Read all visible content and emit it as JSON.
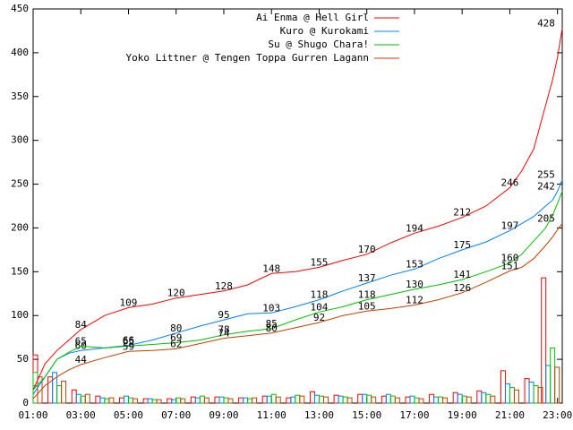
{
  "chart_data": {
    "type": "line",
    "xlim": [
      1,
      23.2
    ],
    "ylim": [
      0,
      450
    ],
    "yticks": [
      0,
      50,
      100,
      150,
      200,
      250,
      300,
      350,
      400,
      450
    ],
    "xticks": [
      {
        "value": 1,
        "label": "01:00"
      },
      {
        "value": 3,
        "label": "03:00"
      },
      {
        "value": 5,
        "label": "05:00"
      },
      {
        "value": 7,
        "label": "07:00"
      },
      {
        "value": 9,
        "label": "09:00"
      },
      {
        "value": 11,
        "label": "11:00"
      },
      {
        "value": 13,
        "label": "13:00"
      },
      {
        "value": 15,
        "label": "15:00"
      },
      {
        "value": 17,
        "label": "17:00"
      },
      {
        "value": 19,
        "label": "19:00"
      },
      {
        "value": 21,
        "label": "21:00"
      },
      {
        "value": 23,
        "label": "23:00"
      }
    ],
    "legend": "top-right",
    "x": [
      1,
      1.5,
      2,
      2.5,
      3,
      4,
      5,
      6,
      7,
      8,
      9,
      10,
      11,
      12,
      13,
      14,
      15,
      16,
      17,
      18,
      19,
      20,
      21,
      21.5,
      22,
      22.5,
      22.8,
      23,
      23.2
    ],
    "series": [
      {
        "name": "Ai Enma @ Hell Girl",
        "color": "#ff0000",
        "values": [
          15,
          45,
          60,
          72,
          84,
          100,
          109,
          113,
          120,
          124,
          128,
          135,
          148,
          150,
          155,
          163,
          170,
          183,
          194,
          202,
          212,
          225,
          246,
          265,
          290,
          340,
          370,
          395,
          428
        ],
        "value_labels": [
          null,
          null,
          null,
          null,
          "84",
          null,
          "109",
          null,
          "120",
          null,
          "128",
          null,
          "148",
          null,
          "155",
          null,
          "170",
          null,
          "194",
          null,
          "212",
          null,
          "246",
          null,
          null,
          null,
          null,
          null,
          "428"
        ]
      },
      {
        "name": "Kuro @ Kurokami",
        "color": "#0080ff",
        "values": [
          10,
          30,
          50,
          57,
          60,
          63,
          66,
          72,
          80,
          88,
          95,
          102,
          103,
          110,
          118,
          128,
          137,
          146,
          153,
          165,
          175,
          184,
          197,
          205,
          213,
          225,
          232,
          242,
          255
        ],
        "value_labels": [
          null,
          null,
          null,
          null,
          "60",
          null,
          "66",
          null,
          "80",
          null,
          "95",
          null,
          "103",
          null,
          "118",
          null,
          "137",
          null,
          "153",
          null,
          "175",
          null,
          "197",
          null,
          null,
          null,
          null,
          null,
          "255"
        ]
      },
      {
        "name": "Su @ Shugo Chara!",
        "color": "#00c000",
        "values": [
          15,
          30,
          50,
          58,
          65,
          63,
          65,
          67,
          69,
          72,
          78,
          82,
          85,
          95,
          104,
          110,
          118,
          124,
          130,
          135,
          141,
          150,
          160,
          170,
          185,
          200,
          215,
          228,
          242
        ],
        "value_labels": [
          null,
          null,
          null,
          null,
          "65",
          null,
          "65",
          null,
          "69",
          null,
          "78",
          null,
          "85",
          null,
          "104",
          null,
          "118",
          null,
          "130",
          null,
          "141",
          null,
          "160",
          null,
          null,
          null,
          null,
          null,
          "242"
        ]
      },
      {
        "name": "Yoko Littner @ Tengen Toppa Gurren Lagann",
        "color": "#c04000",
        "values": [
          5,
          20,
          30,
          38,
          44,
          52,
          59,
          60,
          62,
          68,
          74,
          77,
          80,
          86,
          92,
          100,
          105,
          108,
          112,
          118,
          126,
          138,
          151,
          155,
          165,
          180,
          190,
          198,
          205
        ],
        "value_labels": [
          null,
          null,
          null,
          null,
          "44",
          null,
          "59",
          null,
          "62",
          null,
          "74",
          null,
          "80",
          null,
          "92",
          null,
          "105",
          null,
          "112",
          null,
          "126",
          null,
          "151",
          null,
          null,
          null,
          null,
          null,
          "205"
        ]
      }
    ],
    "bar_x": [
      1,
      2,
      3,
      4,
      5,
      6,
      7,
      8,
      9,
      10,
      11,
      12,
      13,
      14,
      15,
      16,
      17,
      18,
      19,
      20,
      21,
      22,
      22.7
    ],
    "bar_series": [
      {
        "color": "#ff0000",
        "values": [
          55,
          30,
          15,
          8,
          6,
          5,
          5,
          7,
          7,
          6,
          8,
          6,
          13,
          9,
          10,
          8,
          7,
          10,
          12,
          14,
          37,
          28,
          143
        ]
      },
      {
        "color": "#0080ff",
        "values": [
          20,
          35,
          10,
          6,
          8,
          5,
          4,
          6,
          7,
          6,
          8,
          7,
          9,
          8,
          10,
          10,
          8,
          7,
          10,
          12,
          22,
          24,
          43
        ]
      },
      {
        "color": "#00c000",
        "values": [
          35,
          20,
          8,
          5,
          6,
          4,
          6,
          8,
          6,
          5,
          10,
          9,
          8,
          7,
          9,
          8,
          6,
          7,
          8,
          10,
          18,
          20,
          63
        ]
      },
      {
        "color": "#c04000",
        "values": [
          30,
          25,
          10,
          6,
          5,
          4,
          5,
          6,
          5,
          6,
          7,
          8,
          7,
          6,
          7,
          6,
          5,
          6,
          7,
          8,
          15,
          18,
          41
        ]
      }
    ]
  }
}
